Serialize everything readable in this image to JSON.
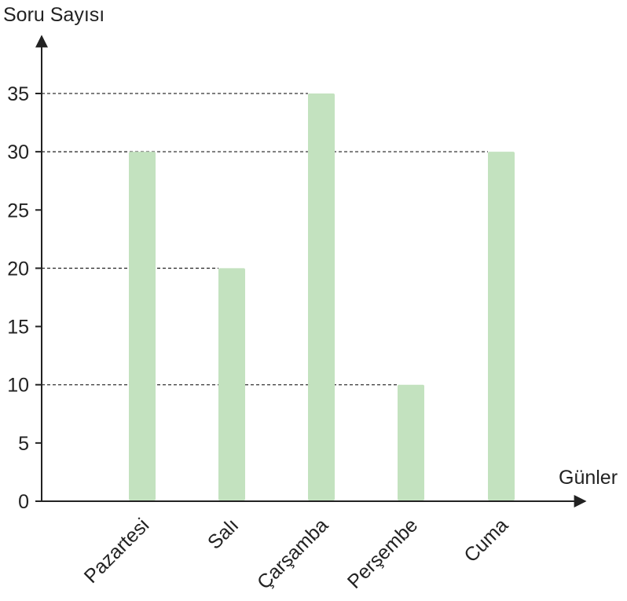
{
  "chart_data": {
    "type": "bar",
    "title": "",
    "ylabel": "Soru Sayısı",
    "xlabel": "Günler",
    "categories": [
      "Pazartesi",
      "Salı",
      "Çarşamba",
      "Perşembe",
      "Cuma"
    ],
    "values": [
      30,
      20,
      35,
      10,
      30
    ],
    "ylim": [
      0,
      35
    ],
    "yticks": [
      0,
      5,
      10,
      15,
      20,
      25,
      30,
      35
    ],
    "grid": "dashed guide lines from y-axis to the top of each bar",
    "legend": "none",
    "colors": {
      "bar": "#c3e2bf",
      "axis": "#222222",
      "guide": "#333333"
    }
  }
}
